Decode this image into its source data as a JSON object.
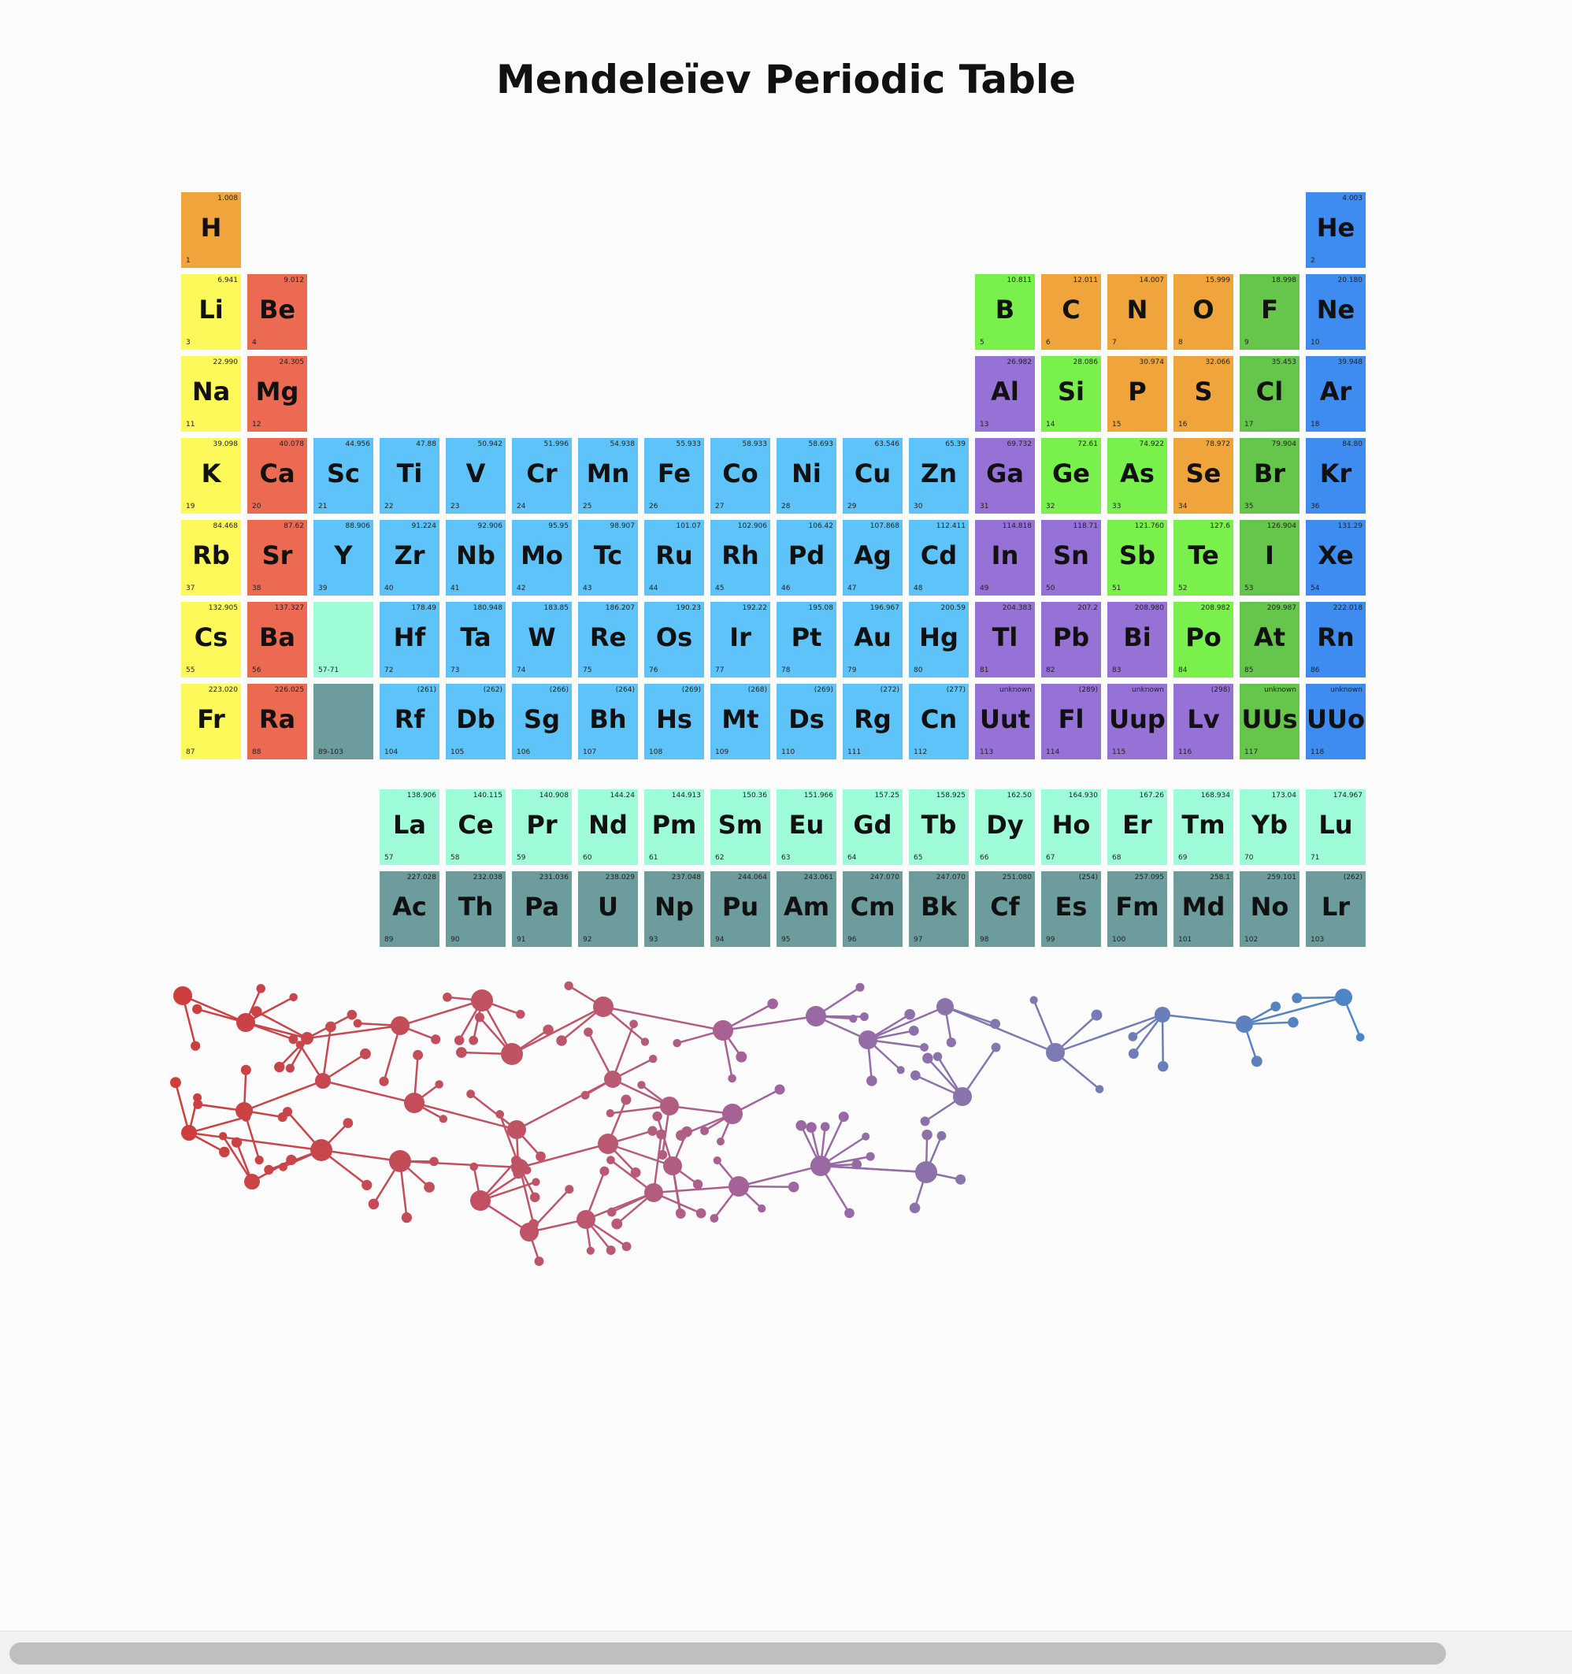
{
  "title": "Mendeleïev Periodic Table",
  "colors": {
    "hydrogen": "#f0a53c",
    "alkali": "#fdf95a",
    "alkaline": "#ec6a52",
    "transition": "#5ec3f8",
    "lanthanoid": "#9efcd8",
    "actinoid": "#6d9c9c",
    "poor": "#9671d6",
    "metalloid": "#79f04c",
    "nonmetal": "#f0a53c",
    "halogen": "#66c64c",
    "noble": "#3f8cf0"
  },
  "elements": [
    {
      "s": "H",
      "n": "1",
      "m": "1.008",
      "c": "hydrogen",
      "r": 1,
      "g": 1
    },
    {
      "s": "He",
      "n": "2",
      "m": "4.003",
      "c": "noble",
      "r": 1,
      "g": 18
    },
    {
      "s": "Li",
      "n": "3",
      "m": "6.941",
      "c": "alkali",
      "r": 2,
      "g": 1
    },
    {
      "s": "Be",
      "n": "4",
      "m": "9.012",
      "c": "alkaline",
      "r": 2,
      "g": 2
    },
    {
      "s": "B",
      "n": "5",
      "m": "10.811",
      "c": "metalloid",
      "r": 2,
      "g": 13
    },
    {
      "s": "C",
      "n": "6",
      "m": "12.011",
      "c": "nonmetal",
      "r": 2,
      "g": 14
    },
    {
      "s": "N",
      "n": "7",
      "m": "14.007",
      "c": "nonmetal",
      "r": 2,
      "g": 15
    },
    {
      "s": "O",
      "n": "8",
      "m": "15.999",
      "c": "nonmetal",
      "r": 2,
      "g": 16
    },
    {
      "s": "F",
      "n": "9",
      "m": "18.998",
      "c": "halogen",
      "r": 2,
      "g": 17
    },
    {
      "s": "Ne",
      "n": "10",
      "m": "20.180",
      "c": "noble",
      "r": 2,
      "g": 18
    },
    {
      "s": "Na",
      "n": "11",
      "m": "22.990",
      "c": "alkali",
      "r": 3,
      "g": 1
    },
    {
      "s": "Mg",
      "n": "12",
      "m": "24.305",
      "c": "alkaline",
      "r": 3,
      "g": 2
    },
    {
      "s": "Al",
      "n": "13",
      "m": "26.982",
      "c": "poor",
      "r": 3,
      "g": 13
    },
    {
      "s": "Si",
      "n": "14",
      "m": "28.086",
      "c": "metalloid",
      "r": 3,
      "g": 14
    },
    {
      "s": "P",
      "n": "15",
      "m": "30.974",
      "c": "nonmetal",
      "r": 3,
      "g": 15
    },
    {
      "s": "S",
      "n": "16",
      "m": "32.066",
      "c": "nonmetal",
      "r": 3,
      "g": 16
    },
    {
      "s": "Cl",
      "n": "17",
      "m": "35.453",
      "c": "halogen",
      "r": 3,
      "g": 17
    },
    {
      "s": "Ar",
      "n": "18",
      "m": "39.948",
      "c": "noble",
      "r": 3,
      "g": 18
    },
    {
      "s": "K",
      "n": "19",
      "m": "39.098",
      "c": "alkali",
      "r": 4,
      "g": 1
    },
    {
      "s": "Ca",
      "n": "20",
      "m": "40.078",
      "c": "alkaline",
      "r": 4,
      "g": 2
    },
    {
      "s": "Sc",
      "n": "21",
      "m": "44.956",
      "c": "transition",
      "r": 4,
      "g": 3
    },
    {
      "s": "Ti",
      "n": "22",
      "m": "47.88",
      "c": "transition",
      "r": 4,
      "g": 4
    },
    {
      "s": "V",
      "n": "23",
      "m": "50.942",
      "c": "transition",
      "r": 4,
      "g": 5
    },
    {
      "s": "Cr",
      "n": "24",
      "m": "51.996",
      "c": "transition",
      "r": 4,
      "g": 6
    },
    {
      "s": "Mn",
      "n": "25",
      "m": "54.938",
      "c": "transition",
      "r": 4,
      "g": 7
    },
    {
      "s": "Fe",
      "n": "26",
      "m": "55.933",
      "c": "transition",
      "r": 4,
      "g": 8
    },
    {
      "s": "Co",
      "n": "27",
      "m": "58.933",
      "c": "transition",
      "r": 4,
      "g": 9
    },
    {
      "s": "Ni",
      "n": "28",
      "m": "58.693",
      "c": "transition",
      "r": 4,
      "g": 10
    },
    {
      "s": "Cu",
      "n": "29",
      "m": "63.546",
      "c": "transition",
      "r": 4,
      "g": 11
    },
    {
      "s": "Zn",
      "n": "30",
      "m": "65.39",
      "c": "transition",
      "r": 4,
      "g": 12
    },
    {
      "s": "Ga",
      "n": "31",
      "m": "69.732",
      "c": "poor",
      "r": 4,
      "g": 13
    },
    {
      "s": "Ge",
      "n": "32",
      "m": "72.61",
      "c": "metalloid",
      "r": 4,
      "g": 14
    },
    {
      "s": "As",
      "n": "33",
      "m": "74.922",
      "c": "metalloid",
      "r": 4,
      "g": 15
    },
    {
      "s": "Se",
      "n": "34",
      "m": "78.972",
      "c": "nonmetal",
      "r": 4,
      "g": 16
    },
    {
      "s": "Br",
      "n": "35",
      "m": "79.904",
      "c": "halogen",
      "r": 4,
      "g": 17
    },
    {
      "s": "Kr",
      "n": "36",
      "m": "84.80",
      "c": "noble",
      "r": 4,
      "g": 18
    },
    {
      "s": "Rb",
      "n": "37",
      "m": "84.468",
      "c": "alkali",
      "r": 5,
      "g": 1
    },
    {
      "s": "Sr",
      "n": "38",
      "m": "87.62",
      "c": "alkaline",
      "r": 5,
      "g": 2
    },
    {
      "s": "Y",
      "n": "39",
      "m": "88.906",
      "c": "transition",
      "r": 5,
      "g": 3
    },
    {
      "s": "Zr",
      "n": "40",
      "m": "91.224",
      "c": "transition",
      "r": 5,
      "g": 4
    },
    {
      "s": "Nb",
      "n": "41",
      "m": "92.906",
      "c": "transition",
      "r": 5,
      "g": 5
    },
    {
      "s": "Mo",
      "n": "42",
      "m": "95.95",
      "c": "transition",
      "r": 5,
      "g": 6
    },
    {
      "s": "Tc",
      "n": "43",
      "m": "98.907",
      "c": "transition",
      "r": 5,
      "g": 7
    },
    {
      "s": "Ru",
      "n": "44",
      "m": "101.07",
      "c": "transition",
      "r": 5,
      "g": 8
    },
    {
      "s": "Rh",
      "n": "45",
      "m": "102.906",
      "c": "transition",
      "r": 5,
      "g": 9
    },
    {
      "s": "Pd",
      "n": "46",
      "m": "106.42",
      "c": "transition",
      "r": 5,
      "g": 10
    },
    {
      "s": "Ag",
      "n": "47",
      "m": "107.868",
      "c": "transition",
      "r": 5,
      "g": 11
    },
    {
      "s": "Cd",
      "n": "48",
      "m": "112.411",
      "c": "transition",
      "r": 5,
      "g": 12
    },
    {
      "s": "In",
      "n": "49",
      "m": "114.818",
      "c": "poor",
      "r": 5,
      "g": 13
    },
    {
      "s": "Sn",
      "n": "50",
      "m": "118.71",
      "c": "poor",
      "r": 5,
      "g": 14
    },
    {
      "s": "Sb",
      "n": "51",
      "m": "121.760",
      "c": "metalloid",
      "r": 5,
      "g": 15
    },
    {
      "s": "Te",
      "n": "52",
      "m": "127.6",
      "c": "metalloid",
      "r": 5,
      "g": 16
    },
    {
      "s": "I",
      "n": "53",
      "m": "126.904",
      "c": "halogen",
      "r": 5,
      "g": 17
    },
    {
      "s": "Xe",
      "n": "54",
      "m": "131.29",
      "c": "noble",
      "r": 5,
      "g": 18
    },
    {
      "s": "Cs",
      "n": "55",
      "m": "132.905",
      "c": "alkali",
      "r": 6,
      "g": 1
    },
    {
      "s": "Ba",
      "n": "56",
      "m": "137.327",
      "c": "alkaline",
      "r": 6,
      "g": 2
    },
    {
      "s": "",
      "n": "57-71",
      "m": "",
      "c": "lanthanoid",
      "r": 6,
      "g": 3
    },
    {
      "s": "Hf",
      "n": "72",
      "m": "178.49",
      "c": "transition",
      "r": 6,
      "g": 4
    },
    {
      "s": "Ta",
      "n": "73",
      "m": "180.948",
      "c": "transition",
      "r": 6,
      "g": 5
    },
    {
      "s": "W",
      "n": "74",
      "m": "183.85",
      "c": "transition",
      "r": 6,
      "g": 6
    },
    {
      "s": "Re",
      "n": "75",
      "m": "186.207",
      "c": "transition",
      "r": 6,
      "g": 7
    },
    {
      "s": "Os",
      "n": "76",
      "m": "190.23",
      "c": "transition",
      "r": 6,
      "g": 8
    },
    {
      "s": "Ir",
      "n": "77",
      "m": "192.22",
      "c": "transition",
      "r": 6,
      "g": 9
    },
    {
      "s": "Pt",
      "n": "78",
      "m": "195.08",
      "c": "transition",
      "r": 6,
      "g": 10
    },
    {
      "s": "Au",
      "n": "79",
      "m": "196.967",
      "c": "transition",
      "r": 6,
      "g": 11
    },
    {
      "s": "Hg",
      "n": "80",
      "m": "200.59",
      "c": "transition",
      "r": 6,
      "g": 12
    },
    {
      "s": "Tl",
      "n": "81",
      "m": "204.383",
      "c": "poor",
      "r": 6,
      "g": 13
    },
    {
      "s": "Pb",
      "n": "82",
      "m": "207.2",
      "c": "poor",
      "r": 6,
      "g": 14
    },
    {
      "s": "Bi",
      "n": "83",
      "m": "208.980",
      "c": "poor",
      "r": 6,
      "g": 15
    },
    {
      "s": "Po",
      "n": "84",
      "m": "208.982",
      "c": "metalloid",
      "r": 6,
      "g": 16
    },
    {
      "s": "At",
      "n": "85",
      "m": "209.987",
      "c": "halogen",
      "r": 6,
      "g": 17
    },
    {
      "s": "Rn",
      "n": "86",
      "m": "222.018",
      "c": "noble",
      "r": 6,
      "g": 18
    },
    {
      "s": "Fr",
      "n": "87",
      "m": "223.020",
      "c": "alkali",
      "r": 7,
      "g": 1
    },
    {
      "s": "Ra",
      "n": "88",
      "m": "226.025",
      "c": "alkaline",
      "r": 7,
      "g": 2
    },
    {
      "s": "",
      "n": "89-103",
      "m": "",
      "c": "actinoid",
      "r": 7,
      "g": 3
    },
    {
      "s": "Rf",
      "n": "104",
      "m": "(261)",
      "c": "transition",
      "r": 7,
      "g": 4
    },
    {
      "s": "Db",
      "n": "105",
      "m": "(262)",
      "c": "transition",
      "r": 7,
      "g": 5
    },
    {
      "s": "Sg",
      "n": "106",
      "m": "(266)",
      "c": "transition",
      "r": 7,
      "g": 6
    },
    {
      "s": "Bh",
      "n": "107",
      "m": "(264)",
      "c": "transition",
      "r": 7,
      "g": 7
    },
    {
      "s": "Hs",
      "n": "108",
      "m": "(269)",
      "c": "transition",
      "r": 7,
      "g": 8
    },
    {
      "s": "Mt",
      "n": "109",
      "m": "(268)",
      "c": "transition",
      "r": 7,
      "g": 9
    },
    {
      "s": "Ds",
      "n": "110",
      "m": "(269)",
      "c": "transition",
      "r": 7,
      "g": 10
    },
    {
      "s": "Rg",
      "n": "111",
      "m": "(272)",
      "c": "transition",
      "r": 7,
      "g": 11
    },
    {
      "s": "Cn",
      "n": "112",
      "m": "(277)",
      "c": "transition",
      "r": 7,
      "g": 12
    },
    {
      "s": "Uut",
      "n": "113",
      "m": "unknown",
      "c": "poor",
      "r": 7,
      "g": 13
    },
    {
      "s": "Fl",
      "n": "114",
      "m": "(289)",
      "c": "poor",
      "r": 7,
      "g": 14
    },
    {
      "s": "Uup",
      "n": "115",
      "m": "unknown",
      "c": "poor",
      "r": 7,
      "g": 15
    },
    {
      "s": "Lv",
      "n": "116",
      "m": "(298)",
      "c": "poor",
      "r": 7,
      "g": 16
    },
    {
      "s": "UUs",
      "n": "117",
      "m": "unknown",
      "c": "halogen",
      "r": 7,
      "g": 17
    },
    {
      "s": "UUo",
      "n": "118",
      "m": "unknown",
      "c": "noble",
      "r": 7,
      "g": 18
    },
    {
      "s": "La",
      "n": "57",
      "m": "138.906",
      "c": "lanthanoid",
      "r": 9,
      "g": 4
    },
    {
      "s": "Ce",
      "n": "58",
      "m": "140.115",
      "c": "lanthanoid",
      "r": 9,
      "g": 5
    },
    {
      "s": "Pr",
      "n": "59",
      "m": "140.908",
      "c": "lanthanoid",
      "r": 9,
      "g": 6
    },
    {
      "s": "Nd",
      "n": "60",
      "m": "144.24",
      "c": "lanthanoid",
      "r": 9,
      "g": 7
    },
    {
      "s": "Pm",
      "n": "61",
      "m": "144.913",
      "c": "lanthanoid",
      "r": 9,
      "g": 8
    },
    {
      "s": "Sm",
      "n": "62",
      "m": "150.36",
      "c": "lanthanoid",
      "r": 9,
      "g": 9
    },
    {
      "s": "Eu",
      "n": "63",
      "m": "151.966",
      "c": "lanthanoid",
      "r": 9,
      "g": 10
    },
    {
      "s": "Gd",
      "n": "64",
      "m": "157.25",
      "c": "lanthanoid",
      "r": 9,
      "g": 11
    },
    {
      "s": "Tb",
      "n": "65",
      "m": "158.925",
      "c": "lanthanoid",
      "r": 9,
      "g": 12
    },
    {
      "s": "Dy",
      "n": "66",
      "m": "162.50",
      "c": "lanthanoid",
      "r": 9,
      "g": 13
    },
    {
      "s": "Ho",
      "n": "67",
      "m": "164.930",
      "c": "lanthanoid",
      "r": 9,
      "g": 14
    },
    {
      "s": "Er",
      "n": "68",
      "m": "167.26",
      "c": "lanthanoid",
      "r": 9,
      "g": 15
    },
    {
      "s": "Tm",
      "n": "69",
      "m": "168.934",
      "c": "lanthanoid",
      "r": 9,
      "g": 16
    },
    {
      "s": "Yb",
      "n": "70",
      "m": "173.04",
      "c": "lanthanoid",
      "r": 9,
      "g": 17
    },
    {
      "s": "Lu",
      "n": "71",
      "m": "174.967",
      "c": "lanthanoid",
      "r": 9,
      "g": 18
    },
    {
      "s": "Ac",
      "n": "89",
      "m": "227.028",
      "c": "actinoid",
      "r": 10,
      "g": 4
    },
    {
      "s": "Th",
      "n": "90",
      "m": "232.038",
      "c": "actinoid",
      "r": 10,
      "g": 5
    },
    {
      "s": "Pa",
      "n": "91",
      "m": "231.036",
      "c": "actinoid",
      "r": 10,
      "g": 6
    },
    {
      "s": "U",
      "n": "92",
      "m": "238.029",
      "c": "actinoid",
      "r": 10,
      "g": 7
    },
    {
      "s": "Np",
      "n": "93",
      "m": "237.048",
      "c": "actinoid",
      "r": 10,
      "g": 8
    },
    {
      "s": "Pu",
      "n": "94",
      "m": "244.064",
      "c": "actinoid",
      "r": 10,
      "g": 9
    },
    {
      "s": "Am",
      "n": "95",
      "m": "243.061",
      "c": "actinoid",
      "r": 10,
      "g": 10
    },
    {
      "s": "Cm",
      "n": "96",
      "m": "247.070",
      "c": "actinoid",
      "r": 10,
      "g": 11
    },
    {
      "s": "Bk",
      "n": "97",
      "m": "247.070",
      "c": "actinoid",
      "r": 10,
      "g": 12
    },
    {
      "s": "Cf",
      "n": "98",
      "m": "251.080",
      "c": "actinoid",
      "r": 10,
      "g": 13
    },
    {
      "s": "Es",
      "n": "99",
      "m": "(254)",
      "c": "actinoid",
      "r": 10,
      "g": 14
    },
    {
      "s": "Fm",
      "n": "100",
      "m": "257.095",
      "c": "actinoid",
      "r": 10,
      "g": 15
    },
    {
      "s": "Md",
      "n": "101",
      "m": "258.1",
      "c": "actinoid",
      "r": 10,
      "g": 16
    },
    {
      "s": "No",
      "n": "102",
      "m": "259.101",
      "c": "actinoid",
      "r": 10,
      "g": 17
    },
    {
      "s": "Lr",
      "n": "103",
      "m": "(262)",
      "c": "actinoid",
      "r": 10,
      "g": 18
    }
  ]
}
